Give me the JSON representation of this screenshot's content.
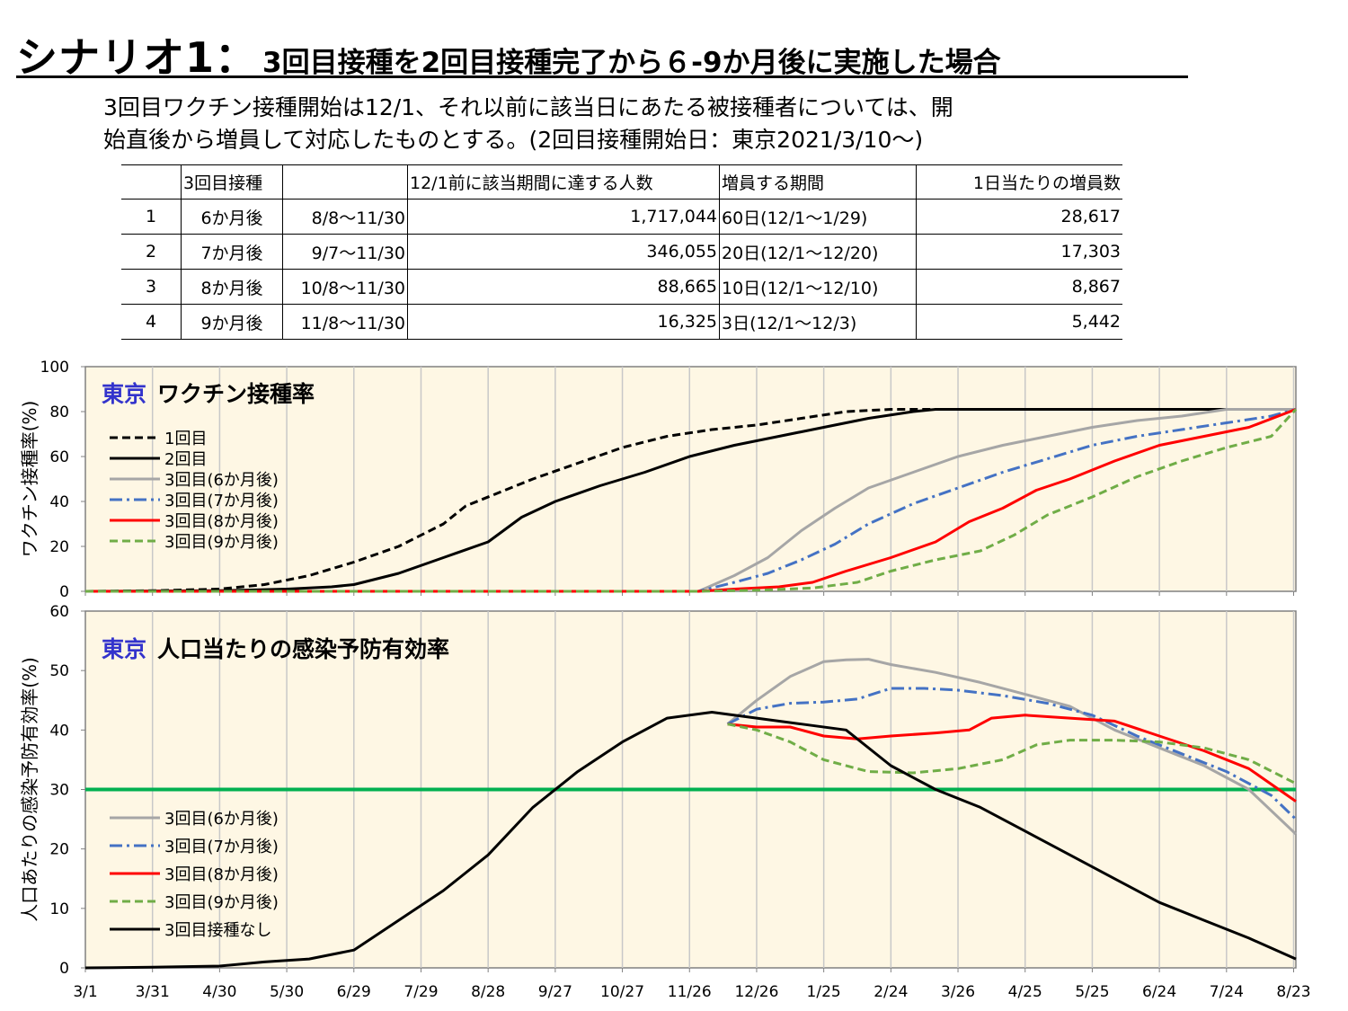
{
  "header": {
    "title_main": "シナリオ1：",
    "title_sub": "3回目接種を2回目接種完了から６-9か月後に実施した場合",
    "description_line1": "3回目ワクチン接種開始は12/1、それ以前に該当日にあたる被接種者については、開",
    "description_line2": "始直後から増員して対応したものとする。(2回目接種開始日：東京2021/3/10～)"
  },
  "table": {
    "header": [
      "",
      "3回目接種",
      "",
      "12/1前に該当期間に達する人数",
      "増員する期間",
      "1日当たりの増員数"
    ],
    "rows": [
      [
        "1",
        "6か月後",
        "8/8～11/30",
        "1,717,044",
        "60日(12/1～1/29)",
        "28,617"
      ],
      [
        "2",
        "7か月後",
        "9/7～11/30",
        "346,055",
        "20日(12/1～12/20)",
        "17,303"
      ],
      [
        "3",
        "8か月後",
        "10/8～11/30",
        "88,665",
        "10日(12/1～12/10)",
        "8,867"
      ],
      [
        "4",
        "9か月後",
        "11/8～11/30",
        "16,325",
        "3日(12/1～12/3)",
        "5,442"
      ]
    ]
  },
  "colors": {
    "background": "#FEF7E4",
    "grid": "#C8C8C8",
    "gray": "#A6A6A6",
    "blue": "#4472C4",
    "red": "#FF0000",
    "green": "#70AD47",
    "black": "#000000",
    "threshold": "#00B050",
    "tokyo_label": "#3333CC"
  },
  "chart_data": [
    {
      "type": "line",
      "title_prefix": "東京",
      "title": "ワクチン接種率",
      "ylabel": "ワクチン接種率(%)",
      "ylim": [
        0,
        100
      ],
      "yticks": [
        0,
        20,
        40,
        60,
        80,
        100
      ],
      "x_tick_labels": [
        "3/1",
        "3/31",
        "4/30",
        "5/30",
        "6/29",
        "7/29",
        "8/28",
        "9/27",
        "10/27",
        "11/26",
        "12/26",
        "1/25",
        "2/24",
        "3/26",
        "4/25",
        "5/25",
        "6/24",
        "7/24",
        "8/23"
      ],
      "x_unit": "days since 3/1 (tick every 30 days)",
      "xlim": [
        0,
        541
      ],
      "grid": true,
      "legend_position": "left",
      "series": [
        {
          "name": "1回目",
          "color": "#000000",
          "style": "dashed",
          "width": 3,
          "points": [
            [
              0,
              0
            ],
            [
              30,
              0.3
            ],
            [
              60,
              1
            ],
            [
              80,
              3
            ],
            [
              100,
              7
            ],
            [
              120,
              13
            ],
            [
              140,
              20
            ],
            [
              160,
              30
            ],
            [
              170,
              38
            ],
            [
              185,
              44
            ],
            [
              200,
              50
            ],
            [
              220,
              57
            ],
            [
              240,
              64
            ],
            [
              260,
              69
            ],
            [
              280,
              72
            ],
            [
              300,
              74
            ],
            [
              320,
              77
            ],
            [
              340,
              80
            ],
            [
              360,
              81
            ],
            [
              541,
              81
            ]
          ]
        },
        {
          "name": "2回目",
          "color": "#000000",
          "style": "solid",
          "width": 3,
          "points": [
            [
              0,
              0
            ],
            [
              60,
              0.3
            ],
            [
              90,
              1
            ],
            [
              110,
              2
            ],
            [
              120,
              3
            ],
            [
              140,
              8
            ],
            [
              160,
              15
            ],
            [
              180,
              22
            ],
            [
              195,
              33
            ],
            [
              210,
              40
            ],
            [
              230,
              47
            ],
            [
              250,
              53
            ],
            [
              270,
              60
            ],
            [
              290,
              65
            ],
            [
              310,
              69
            ],
            [
              330,
              73
            ],
            [
              350,
              77
            ],
            [
              370,
              80
            ],
            [
              380,
              81
            ],
            [
              541,
              81
            ]
          ]
        },
        {
          "name": "3回目(6か月後)",
          "color": "#A6A6A6",
          "style": "solid",
          "width": 3,
          "points": [
            [
              0,
              0
            ],
            [
              274,
              0
            ],
            [
              290,
              7
            ],
            [
              305,
              15
            ],
            [
              320,
              27
            ],
            [
              335,
              37
            ],
            [
              350,
              46
            ],
            [
              370,
              53
            ],
            [
              390,
              60
            ],
            [
              410,
              65
            ],
            [
              430,
              69
            ],
            [
              450,
              73
            ],
            [
              470,
              76
            ],
            [
              490,
              78
            ],
            [
              510,
              81
            ],
            [
              541,
              81
            ]
          ]
        },
        {
          "name": "3回目(7か月後)",
          "color": "#4472C4",
          "style": "dashdot",
          "width": 3,
          "points": [
            [
              0,
              0
            ],
            [
              274,
              0
            ],
            [
              290,
              4
            ],
            [
              305,
              8
            ],
            [
              320,
              14
            ],
            [
              335,
              21
            ],
            [
              350,
              30
            ],
            [
              370,
              39
            ],
            [
              390,
              46
            ],
            [
              410,
              53
            ],
            [
              430,
              59
            ],
            [
              450,
              65
            ],
            [
              470,
              69
            ],
            [
              490,
              72
            ],
            [
              510,
              75
            ],
            [
              530,
              78
            ],
            [
              541,
              81
            ]
          ]
        },
        {
          "name": "3回目(8か月後)",
          "color": "#FF0000",
          "style": "solid",
          "width": 3,
          "points": [
            [
              0,
              0
            ],
            [
              274,
              0
            ],
            [
              290,
              1
            ],
            [
              310,
              2
            ],
            [
              325,
              4
            ],
            [
              340,
              9
            ],
            [
              360,
              15
            ],
            [
              380,
              22
            ],
            [
              395,
              31
            ],
            [
              410,
              37
            ],
            [
              425,
              45
            ],
            [
              440,
              50
            ],
            [
              460,
              58
            ],
            [
              480,
              65
            ],
            [
              500,
              69
            ],
            [
              520,
              73
            ],
            [
              541,
              81
            ]
          ]
        },
        {
          "name": "3回目(9か月後)",
          "color": "#70AD47",
          "style": "dashed",
          "width": 3,
          "points": [
            [
              0,
              0
            ],
            [
              274,
              0
            ],
            [
              300,
              0.5
            ],
            [
              325,
              1.5
            ],
            [
              345,
              4
            ],
            [
              360,
              9
            ],
            [
              380,
              14
            ],
            [
              400,
              18
            ],
            [
              415,
              25
            ],
            [
              430,
              34
            ],
            [
              450,
              42
            ],
            [
              470,
              51
            ],
            [
              490,
              58
            ],
            [
              510,
              64
            ],
            [
              530,
              69
            ],
            [
              541,
              81
            ]
          ]
        }
      ]
    },
    {
      "type": "line",
      "title_prefix": "東京",
      "title": "人口当たりの感染予防有効率",
      "ylabel": "人口あたりの感染予防有効率(%)",
      "ylim": [
        0,
        60
      ],
      "yticks": [
        0,
        10,
        20,
        30,
        40,
        50,
        60
      ],
      "x_tick_labels": [
        "3/1",
        "3/31",
        "4/30",
        "5/30",
        "6/29",
        "7/29",
        "8/28",
        "9/27",
        "10/27",
        "11/26",
        "12/26",
        "1/25",
        "2/24",
        "3/26",
        "4/25",
        "5/25",
        "6/24",
        "7/24",
        "8/23"
      ],
      "x_unit": "days since 3/1 (tick every 30 days)",
      "xlim": [
        0,
        541
      ],
      "grid": true,
      "legend_position": "bottom-left",
      "threshold": {
        "value": 30,
        "color": "#00B050"
      },
      "series": [
        {
          "name": "3回目(6か月後)",
          "color": "#A6A6A6",
          "style": "solid",
          "width": 3,
          "points": [
            [
              287,
              41
            ],
            [
              300,
              45
            ],
            [
              315,
              49
            ],
            [
              330,
              51.5
            ],
            [
              340,
              51.8
            ],
            [
              350,
              51.9
            ],
            [
              360,
              51
            ],
            [
              380,
              49.7
            ],
            [
              400,
              48
            ],
            [
              420,
              46
            ],
            [
              440,
              44
            ],
            [
              460,
              40
            ],
            [
              480,
              37
            ],
            [
              500,
              34
            ],
            [
              520,
              30
            ],
            [
              541,
              22.5
            ]
          ]
        },
        {
          "name": "3回目(7か月後)",
          "color": "#4472C4",
          "style": "dashdot",
          "width": 3,
          "points": [
            [
              287,
              41
            ],
            [
              300,
              43.5
            ],
            [
              315,
              44.5
            ],
            [
              330,
              44.7
            ],
            [
              345,
              45.2
            ],
            [
              360,
              47
            ],
            [
              375,
              47
            ],
            [
              390,
              46.7
            ],
            [
              410,
              45.8
            ],
            [
              430,
              44.5
            ],
            [
              450,
              42.5
            ],
            [
              470,
              39
            ],
            [
              490,
              36
            ],
            [
              510,
              33
            ],
            [
              530,
              29
            ],
            [
              541,
              25
            ]
          ]
        },
        {
          "name": "3回目(8か月後)",
          "color": "#FF0000",
          "style": "solid",
          "width": 3,
          "points": [
            [
              287,
              41
            ],
            [
              300,
              40.5
            ],
            [
              315,
              40.5
            ],
            [
              330,
              39
            ],
            [
              345,
              38.5
            ],
            [
              360,
              39
            ],
            [
              380,
              39.5
            ],
            [
              395,
              40
            ],
            [
              405,
              42
            ],
            [
              420,
              42.5
            ],
            [
              440,
              42
            ],
            [
              460,
              41.5
            ],
            [
              480,
              39
            ],
            [
              500,
              36.5
            ],
            [
              520,
              33.5
            ],
            [
              541,
              28
            ]
          ]
        },
        {
          "name": "3回目(9か月後)",
          "color": "#70AD47",
          "style": "dashed",
          "width": 3,
          "points": [
            [
              287,
              41
            ],
            [
              300,
              40
            ],
            [
              315,
              38
            ],
            [
              330,
              35
            ],
            [
              350,
              33
            ],
            [
              370,
              32.8
            ],
            [
              390,
              33.5
            ],
            [
              410,
              35
            ],
            [
              425,
              37.5
            ],
            [
              440,
              38.3
            ],
            [
              460,
              38.3
            ],
            [
              480,
              38
            ],
            [
              500,
              37
            ],
            [
              520,
              35
            ],
            [
              541,
              31
            ]
          ]
        },
        {
          "name": "3回目接種なし",
          "color": "#000000",
          "style": "solid",
          "width": 3,
          "points": [
            [
              0,
              0
            ],
            [
              30,
              0.1
            ],
            [
              60,
              0.3
            ],
            [
              80,
              1
            ],
            [
              100,
              1.5
            ],
            [
              120,
              3
            ],
            [
              140,
              8
            ],
            [
              160,
              13
            ],
            [
              180,
              19
            ],
            [
              200,
              27
            ],
            [
              220,
              33
            ],
            [
              240,
              38
            ],
            [
              260,
              42
            ],
            [
              280,
              43
            ],
            [
              300,
              42
            ],
            [
              320,
              41
            ],
            [
              340,
              40
            ],
            [
              360,
              34
            ],
            [
              380,
              30
            ],
            [
              400,
              27
            ],
            [
              420,
              23
            ],
            [
              440,
              19
            ],
            [
              460,
              15
            ],
            [
              480,
              11
            ],
            [
              500,
              8
            ],
            [
              520,
              5
            ],
            [
              541,
              1.5
            ]
          ]
        }
      ]
    }
  ]
}
